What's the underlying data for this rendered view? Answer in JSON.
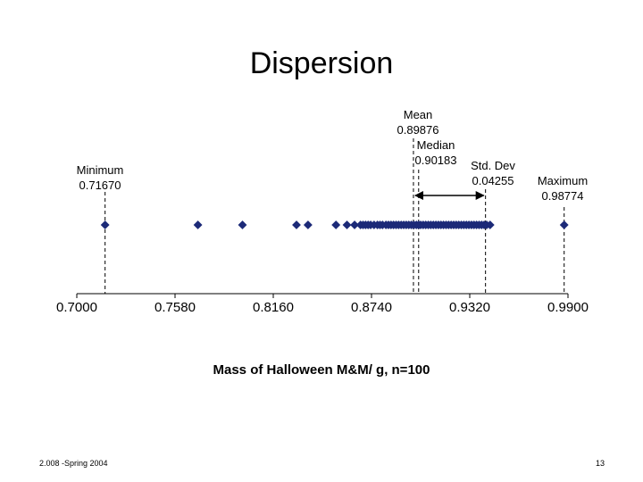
{
  "chart_data": {
    "type": "scatter",
    "title": "Dispersion",
    "xlabel": "Mass of Halloween M&M/ g, n=100",
    "ylabel": "",
    "xlim": [
      0.7,
      0.99
    ],
    "ticks": [
      "0.7000",
      "0.7580",
      "0.8160",
      "0.8740",
      "0.9320",
      "0.9900"
    ],
    "tick_values": [
      0.7,
      0.758,
      0.816,
      0.874,
      0.932,
      0.99
    ],
    "grid": false,
    "marker_color": "#1c2a78",
    "points": [
      0.7167,
      0.7715,
      0.7978,
      0.8297,
      0.8365,
      0.853,
      0.8595,
      0.864,
      0.8675,
      0.869,
      0.8705,
      0.872,
      0.8735,
      0.8755,
      0.8775,
      0.879,
      0.8805,
      0.8825,
      0.884,
      0.8855,
      0.887,
      0.8885,
      0.89,
      0.8915,
      0.893,
      0.8945,
      0.896,
      0.8975,
      0.899,
      0.9005,
      0.90183,
      0.903,
      0.9045,
      0.906,
      0.9075,
      0.909,
      0.9105,
      0.912,
      0.9135,
      0.915,
      0.9165,
      0.918,
      0.9195,
      0.921,
      0.9225,
      0.924,
      0.9255,
      0.927,
      0.9285,
      0.93,
      0.9315,
      0.933,
      0.9345,
      0.936,
      0.9375,
      0.939,
      0.9405,
      0.942,
      0.944,
      0.98774
    ],
    "annotations": {
      "minimum": {
        "label": "Minimum",
        "value": "0.71670",
        "x": 0.7167
      },
      "mean": {
        "label": "Mean",
        "value": "0.89876",
        "x": 0.89876
      },
      "median": {
        "label": "Median",
        "value": "0.90183",
        "x": 0.90183
      },
      "stddev": {
        "label": "Std. Dev",
        "value": "0.04255",
        "low": 0.89876,
        "high": 0.94131
      },
      "maximum": {
        "label": "Maximum",
        "value": "0.98774",
        "x": 0.98774
      }
    }
  },
  "footer": {
    "left": "2.008 -Spring 2004",
    "right": "13"
  }
}
